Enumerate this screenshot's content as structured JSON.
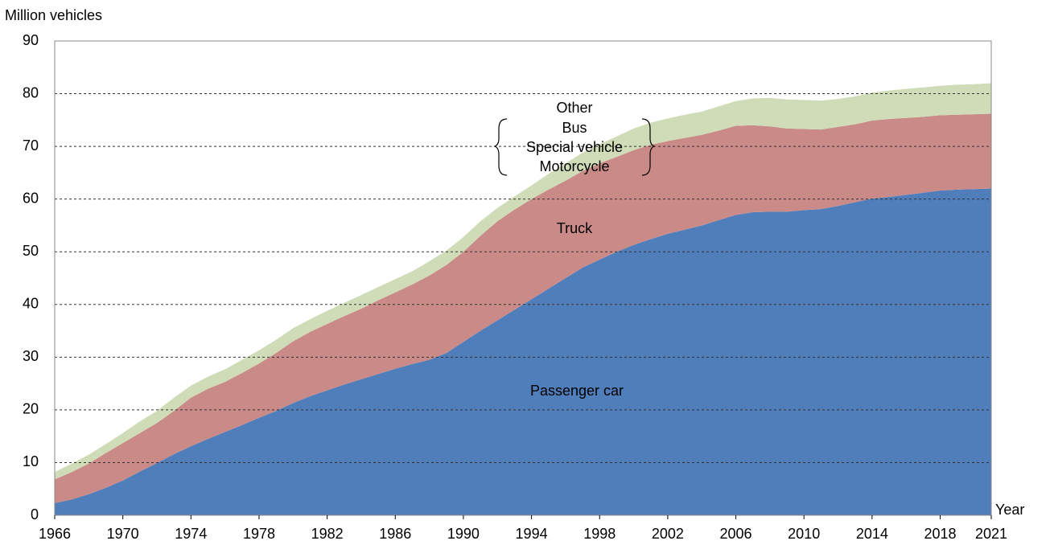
{
  "chart_data": {
    "type": "stacked_area",
    "y_label": "Million vehicles",
    "x_label": "Year",
    "x": [
      1966,
      1967,
      1968,
      1969,
      1970,
      1971,
      1972,
      1973,
      1974,
      1975,
      1976,
      1977,
      1978,
      1979,
      1980,
      1981,
      1982,
      1983,
      1984,
      1985,
      1986,
      1987,
      1988,
      1989,
      1990,
      1991,
      1992,
      1993,
      1994,
      1995,
      1996,
      1997,
      1998,
      1999,
      2000,
      2001,
      2002,
      2003,
      2004,
      2005,
      2006,
      2007,
      2008,
      2009,
      2010,
      2011,
      2012,
      2013,
      2014,
      2015,
      2016,
      2017,
      2018,
      2019,
      2020,
      2021
    ],
    "series": [
      {
        "name": "Passenger car",
        "color": "#4f7eba",
        "values": [
          2.3,
          3.0,
          4.0,
          5.2,
          6.6,
          8.3,
          9.9,
          11.6,
          13.1,
          14.5,
          15.8,
          17.1,
          18.5,
          19.8,
          21.3,
          22.6,
          23.7,
          24.8,
          25.8,
          26.8,
          27.8,
          28.7,
          29.5,
          30.8,
          32.9,
          35.0,
          37.0,
          39.0,
          41.0,
          43.0,
          45.0,
          47.0,
          48.5,
          50.0,
          51.3,
          52.4,
          53.4,
          54.2,
          55.0,
          56.0,
          57.0,
          57.5,
          57.6,
          57.6,
          57.9,
          58.1,
          58.7,
          59.4,
          60.1,
          60.4,
          60.8,
          61.2,
          61.6,
          61.8,
          61.9,
          62.0
        ]
      },
      {
        "name": "Truck",
        "color": "#c98a88",
        "values": [
          4.5,
          5.2,
          5.8,
          6.6,
          7.1,
          7.3,
          7.6,
          8.2,
          9.2,
          9.5,
          9.5,
          9.9,
          10.3,
          11.0,
          11.7,
          12.2,
          12.6,
          13.0,
          13.4,
          14.0,
          14.5,
          15.1,
          16.0,
          16.7,
          17.1,
          18.0,
          18.8,
          19.0,
          19.0,
          18.8,
          18.5,
          18.3,
          18.3,
          18.0,
          18.0,
          17.9,
          17.6,
          17.4,
          17.2,
          17.0,
          16.9,
          16.5,
          16.2,
          15.8,
          15.4,
          15.1,
          15.0,
          14.8,
          14.8,
          14.8,
          14.6,
          14.4,
          14.3,
          14.2,
          14.2,
          14.2
        ]
      },
      {
        "name_lines": [
          "Other",
          "Bus",
          "Special vehicle",
          "Motorcycle"
        ],
        "color": "#cfdcb7",
        "values": [
          1.4,
          1.6,
          1.7,
          1.7,
          1.9,
          2.2,
          2.3,
          2.5,
          2.3,
          2.3,
          2.4,
          2.5,
          2.5,
          2.5,
          2.5,
          2.4,
          2.5,
          2.5,
          2.6,
          2.5,
          2.5,
          2.5,
          2.7,
          2.7,
          2.8,
          2.8,
          2.5,
          2.5,
          2.6,
          3.0,
          3.3,
          3.5,
          3.6,
          3.9,
          4.1,
          4.2,
          4.3,
          4.4,
          4.4,
          4.6,
          4.7,
          5.1,
          5.4,
          5.5,
          5.5,
          5.5,
          5.3,
          5.3,
          5.3,
          5.4,
          5.5,
          5.6,
          5.6,
          5.7,
          5.7,
          5.8
        ]
      }
    ],
    "xlim": [
      1966,
      2021
    ],
    "xticks": [
      1966,
      1970,
      1974,
      1978,
      1982,
      1986,
      1990,
      1994,
      1998,
      2002,
      2006,
      2010,
      2014,
      2018,
      2021
    ],
    "ylim": [
      0,
      90
    ],
    "yticks": [
      0,
      10,
      20,
      30,
      40,
      50,
      60,
      70,
      80,
      90
    ],
    "grid": true
  }
}
